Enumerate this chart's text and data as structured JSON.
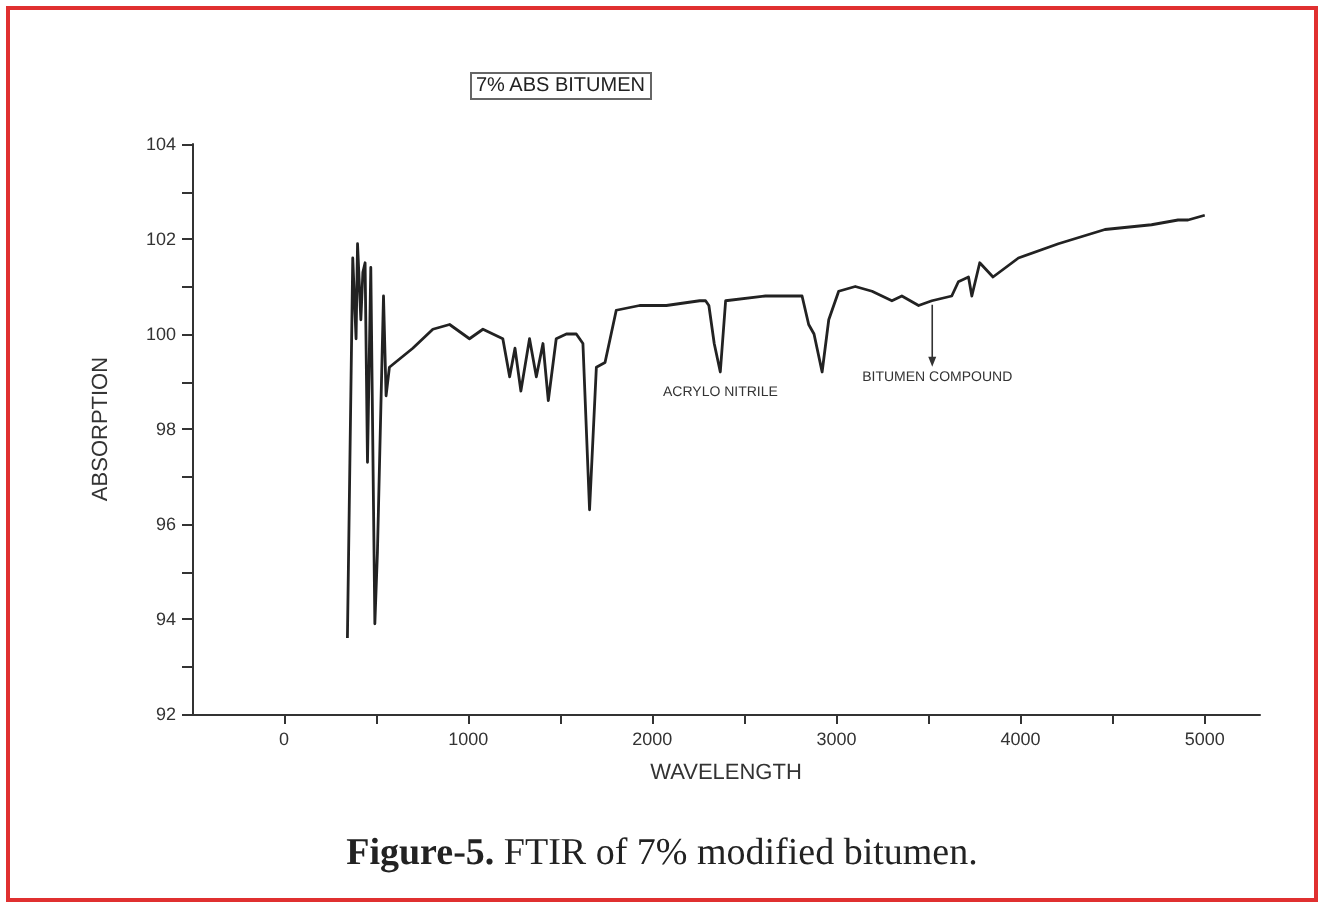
{
  "chart_data": {
    "type": "line",
    "title": "7% ABS BITUMEN",
    "xlabel": "WAVELENGTH",
    "ylabel": "ABSORPTION",
    "xlim": [
      -500,
      5300
    ],
    "xticks": [
      0,
      1000,
      2000,
      3000,
      4000,
      5000
    ],
    "ylim": [
      92,
      104
    ],
    "yticks": [
      92,
      94,
      96,
      98,
      100,
      102,
      104
    ],
    "grid": false,
    "marker": "none",
    "line_style": "solid",
    "series": [
      {
        "color": "#222222",
        "x": [
          344,
          373,
          391,
          399,
          417,
          428,
          440,
          453,
          471,
          493,
          507,
          540,
          554,
          572,
          699,
          808,
          899,
          1007,
          1080,
          1188,
          1225,
          1254,
          1286,
          1333,
          1370,
          1406,
          1435,
          1478,
          1533,
          1587,
          1623,
          1659,
          1696,
          1743,
          1804,
          1931,
          2076,
          2257,
          2289,
          2307,
          2336,
          2369,
          2398,
          2614,
          2813,
          2849,
          2878,
          2922,
          2958,
          3012,
          3102,
          3193,
          3301,
          3355,
          3446,
          3518,
          3626,
          3662,
          3717,
          3735,
          3778,
          3850,
          3988,
          4205,
          4458,
          4711,
          4855,
          4909,
          5000
        ],
        "values": [
          93.6,
          101.6,
          99.9,
          101.9,
          100.3,
          101.3,
          101.5,
          97.3,
          101.4,
          93.9,
          95.4,
          100.8,
          98.7,
          99.3,
          99.7,
          100.1,
          100.2,
          99.9,
          100.1,
          99.9,
          99.1,
          99.7,
          98.8,
          99.9,
          99.1,
          99.8,
          98.6,
          99.9,
          100.0,
          100.0,
          99.8,
          96.3,
          99.3,
          99.4,
          100.5,
          100.6,
          100.6,
          100.7,
          100.7,
          100.6,
          99.8,
          99.2,
          100.7,
          100.8,
          100.8,
          100.2,
          100.0,
          99.2,
          100.3,
          100.9,
          101.0,
          100.9,
          100.7,
          100.8,
          100.6,
          100.7,
          100.8,
          101.1,
          101.2,
          100.8,
          101.5,
          101.2,
          101.6,
          101.9,
          102.2,
          102.3,
          102.4,
          102.4,
          102.5
        ]
      }
    ],
    "annotations": [
      {
        "text": "ACRYLO NITRILE",
        "x": 2370,
        "y": 99.2
      },
      {
        "text": "BITUMEN COMPOUND",
        "x": 3520,
        "y": 100.7
      },
      "Figure-5. FTIR of 7% modified bitumen."
    ]
  }
}
